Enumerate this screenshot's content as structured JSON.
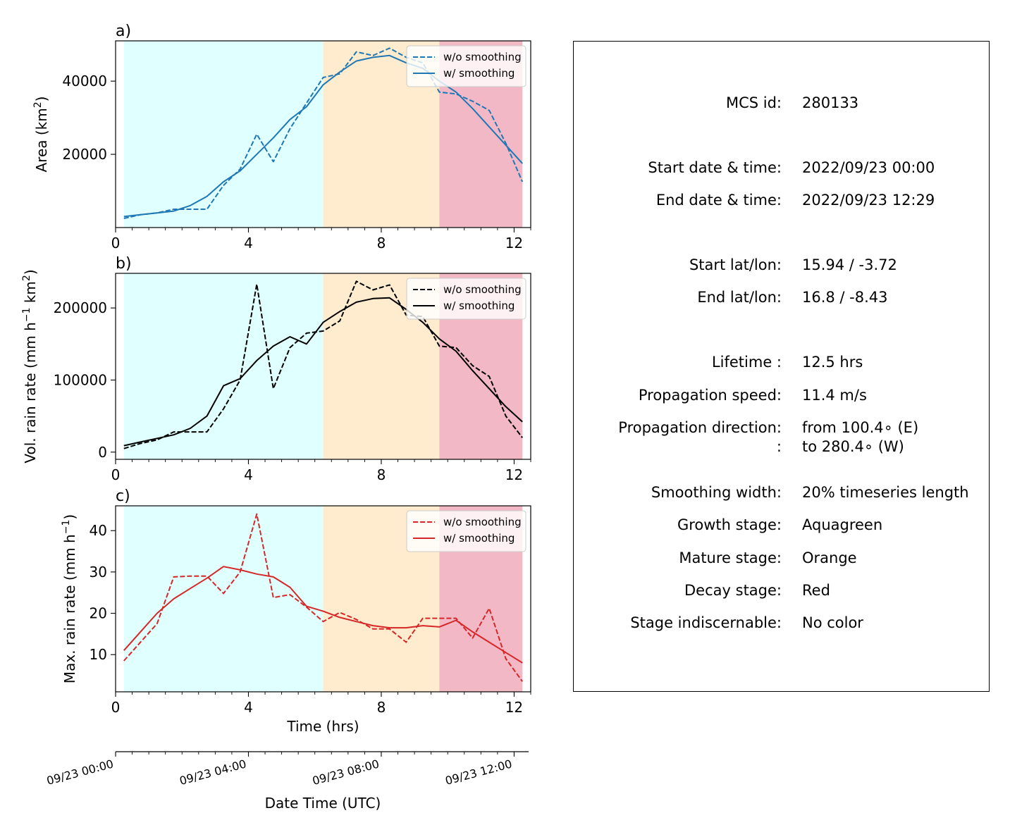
{
  "chart_data": [
    {
      "type": "line",
      "panel_label": "a)",
      "ylabel_main": "Area  (km",
      "ylabel_sup": "2",
      "ylabel_tail": ")",
      "xlim": [
        0,
        12.5
      ],
      "ylim": [
        0,
        51000
      ],
      "xticks": [
        0,
        4,
        8,
        12
      ],
      "yticks": [
        20000,
        40000
      ],
      "color": "#1f77b4",
      "legend_loc": "upper right",
      "series": [
        {
          "name": "w/o smoothing",
          "style": "dashed",
          "x": [
            0.25,
            0.75,
            1.25,
            1.75,
            2.25,
            2.75,
            3.25,
            3.75,
            4.25,
            4.75,
            5.25,
            5.75,
            6.25,
            6.75,
            7.25,
            7.75,
            8.25,
            8.75,
            9.25,
            9.75,
            10.25,
            10.75,
            11.25,
            11.75,
            12.25
          ],
          "y": [
            2500,
            3500,
            4000,
            5000,
            5000,
            5000,
            11500,
            16000,
            25500,
            18000,
            27000,
            34000,
            41000,
            42000,
            48000,
            47000,
            49000,
            46500,
            45000,
            37000,
            36500,
            34500,
            32000,
            23000,
            12500
          ]
        },
        {
          "name": "w/ smoothing",
          "style": "solid",
          "x": [
            0.25,
            0.75,
            1.25,
            1.75,
            2.25,
            2.75,
            3.25,
            3.75,
            4.25,
            4.75,
            5.25,
            5.75,
            6.25,
            6.75,
            7.25,
            7.75,
            8.25,
            8.75,
            9.25,
            9.75,
            10.25,
            10.75,
            11.25,
            11.75,
            12.25
          ],
          "y": [
            3000,
            3500,
            4000,
            4500,
            6000,
            8500,
            12500,
            15500,
            20000,
            24500,
            29500,
            33000,
            39000,
            42500,
            45500,
            46500,
            47000,
            45000,
            43500,
            40000,
            37000,
            32500,
            27500,
            22500,
            17500
          ]
        }
      ]
    },
    {
      "type": "line",
      "panel_label": "b)",
      "ylabel_main": "Vol. rain rate (mm h",
      "ylabel_sup1": "−1",
      "ylabel_mid": " km",
      "ylabel_sup2": "2",
      "ylabel_tail": ")",
      "xlim": [
        0,
        12.5
      ],
      "ylim": [
        -10000,
        248000
      ],
      "xticks": [
        0,
        4,
        8,
        12
      ],
      "yticks": [
        0,
        100000,
        200000
      ],
      "color": "#000000",
      "legend_loc": "upper right",
      "series": [
        {
          "name": "w/o smoothing",
          "style": "dashed",
          "x": [
            0.25,
            0.75,
            1.25,
            1.75,
            2.25,
            2.75,
            3.25,
            3.75,
            4.25,
            4.75,
            5.25,
            5.75,
            6.25,
            6.75,
            7.25,
            7.75,
            8.25,
            8.75,
            9.25,
            9.75,
            10.25,
            10.75,
            11.25,
            11.75,
            12.25
          ],
          "y": [
            5000,
            12000,
            17000,
            28000,
            28000,
            28000,
            60000,
            100000,
            233000,
            88000,
            145000,
            165000,
            168000,
            182000,
            237000,
            225000,
            232000,
            190000,
            188000,
            147000,
            145000,
            120000,
            105000,
            50000,
            20000
          ]
        },
        {
          "name": "w/ smoothing",
          "style": "solid",
          "x": [
            0.25,
            0.75,
            1.25,
            1.75,
            2.25,
            2.75,
            3.25,
            3.75,
            4.25,
            4.75,
            5.25,
            5.75,
            6.25,
            6.75,
            7.25,
            7.75,
            8.25,
            8.75,
            9.25,
            9.75,
            10.25,
            10.75,
            11.25,
            11.75,
            12.25
          ],
          "y": [
            9000,
            14000,
            19000,
            24000,
            33000,
            50000,
            92000,
            102000,
            127000,
            147000,
            160000,
            150000,
            180000,
            195000,
            208000,
            213000,
            214000,
            198000,
            180000,
            157000,
            140000,
            113000,
            88000,
            63000,
            42000
          ]
        }
      ]
    },
    {
      "type": "line",
      "panel_label": "c)",
      "ylabel_main": "Max. rain rate  (mm h",
      "ylabel_sup": "−1",
      "ylabel_tail": ")",
      "xlabel": "Time (hrs)",
      "xlim": [
        0,
        12.5
      ],
      "ylim": [
        1,
        46
      ],
      "xticks": [
        0,
        4,
        8,
        12
      ],
      "yticks": [
        10,
        20,
        30,
        40
      ],
      "color": "#d62728",
      "legend_loc": "upper right",
      "series": [
        {
          "name": "w/o smoothing",
          "style": "dashed",
          "x": [
            0.25,
            0.75,
            1.25,
            1.75,
            2.25,
            2.75,
            3.25,
            3.75,
            4.25,
            4.75,
            5.25,
            5.75,
            6.25,
            6.75,
            7.25,
            7.75,
            8.25,
            8.75,
            9.25,
            9.75,
            10.25,
            10.75,
            11.25,
            11.75,
            12.25
          ],
          "y": [
            8.5,
            13,
            17.5,
            28.8,
            29,
            29,
            24.8,
            30,
            44,
            23.8,
            24.5,
            21.5,
            18,
            20.2,
            18.5,
            16.2,
            16.2,
            13,
            18.8,
            18.8,
            18.8,
            14,
            21.2,
            9,
            3.5
          ]
        },
        {
          "name": "w/ smoothing",
          "style": "solid",
          "x": [
            0.25,
            0.75,
            1.25,
            1.75,
            2.25,
            2.75,
            3.25,
            3.75,
            4.25,
            4.75,
            5.25,
            5.75,
            6.25,
            6.75,
            7.25,
            7.75,
            8.25,
            8.75,
            9.25,
            9.75,
            10.25,
            10.75,
            11.25,
            11.75,
            12.25
          ],
          "y": [
            11,
            15.5,
            20,
            23.5,
            26,
            28.5,
            31.3,
            30.5,
            29.5,
            28.8,
            26.3,
            21.7,
            20.5,
            19,
            18,
            17,
            16.5,
            16.5,
            17,
            16.7,
            18.3,
            15.5,
            13,
            10.5,
            8
          ]
        }
      ]
    }
  ],
  "stages": [
    {
      "name": "Aquagreen",
      "start": 0.25,
      "end": 6.25,
      "color": "#e0ffff"
    },
    {
      "name": "Orange",
      "start": 6.25,
      "end": 9.75,
      "color": "#ffebcd"
    },
    {
      "name": "Red",
      "start": 9.75,
      "end": 12.25,
      "color": "#f3b8c6"
    }
  ],
  "datetime_axis": {
    "label": "Date Time (UTC)",
    "ticks": [
      {
        "hours": 0,
        "label": "09/23 00:00"
      },
      {
        "hours": 4,
        "label": "09/23 04:00"
      },
      {
        "hours": 8,
        "label": "09/23 08:00"
      },
      {
        "hours": 12,
        "label": "09/23 12:00"
      }
    ]
  },
  "info": {
    "rows": [
      {
        "label": "MCS id:",
        "value": "280133"
      },
      {
        "label": "Start date & time:",
        "value": "2022/09/23 00:00"
      },
      {
        "label": "End date & time:",
        "value": "2022/09/23 12:29"
      },
      {
        "label": "Start lat/lon:",
        "value": "15.94 / -3.72"
      },
      {
        "label": "End lat/lon:",
        "value": "16.8 / -8.43"
      },
      {
        "label": "Lifetime :",
        "value": "12.5 hrs"
      },
      {
        "label": "Propagation speed:",
        "value": "11.4 m/s"
      },
      {
        "label": "Propagation direction:",
        "value": "from 100.4∘ (E)"
      },
      {
        "label": ":",
        "value": "to   280.4∘ (W)"
      },
      {
        "label": "Smoothing width:",
        "value": "20% timeseries length"
      },
      {
        "label": "Growth stage:",
        "value": "Aquagreen"
      },
      {
        "label": "Mature stage:",
        "value": "Orange"
      },
      {
        "label": "Decay stage:",
        "value": "Red"
      },
      {
        "label": "Stage indiscernable:",
        "value": "No color"
      }
    ]
  }
}
